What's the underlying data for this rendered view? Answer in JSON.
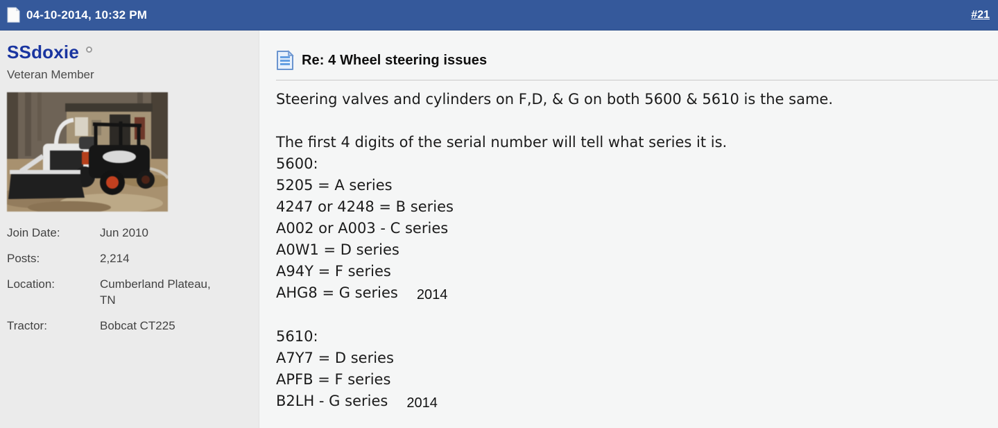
{
  "header": {
    "date": "04-10-2014, 10:32 PM",
    "post_number": "#21",
    "icon": "document-icon"
  },
  "sidebar": {
    "username": "SSdoxie",
    "status_icon": "status-indicator-icon",
    "user_title": "Veteran Member",
    "avatar_alt": "White Bobcat compact tractor with front loader and a black utility vehicle parked in front of a house",
    "stats": [
      {
        "label": "Join Date:",
        "value": "Jun 2010"
      },
      {
        "label": "Posts:",
        "value": "2,214"
      },
      {
        "label": "Location:",
        "value": "Cumberland Plateau, TN"
      },
      {
        "label": "Tractor:",
        "value": "Bobcat CT225"
      }
    ]
  },
  "post": {
    "title_icon": "post-document-icon",
    "title": "Re: 4 Wheel steering issues",
    "body_lines": [
      {
        "text": "Steering valves and cylinders on F,D, & G on both 5600 & 5610 is the same."
      },
      {
        "text": ""
      },
      {
        "text": "The first 4 digits of the serial number will tell what series it is."
      },
      {
        "text": "5600:"
      },
      {
        "text": "5205 = A series"
      },
      {
        "text": "4247 or 4248 = B series"
      },
      {
        "text": "A002 or A003 - C series"
      },
      {
        "text": "A0W1 = D series"
      },
      {
        "text": "A94Y = F series"
      },
      {
        "text": "AHG8 = G series",
        "annotation": "2014"
      },
      {
        "text": ""
      },
      {
        "text": "5610:"
      },
      {
        "text": "A7Y7 = D series"
      },
      {
        "text": "APFB = F series"
      },
      {
        "text": "B2LH - G series",
        "annotation": "2014"
      }
    ]
  },
  "colors": {
    "header_bg": "#35599b",
    "header_text": "#ffffff",
    "sidebar_bg": "#ebebeb",
    "content_bg": "#f5f6f6",
    "username_link": "#1a35a0",
    "body_text": "#1b1b1b",
    "divider": "#c9c9c9"
  }
}
